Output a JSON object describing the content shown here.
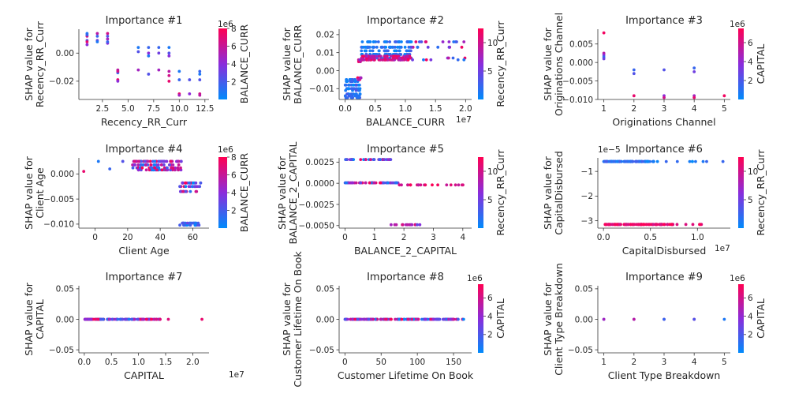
{
  "chart_data": [
    {
      "type": "scatter",
      "title": "Importance #1",
      "xlabel": "Recency_RR_Curr",
      "ylabel": "SHAP value for\nRecency_RR_Curr",
      "xlim": [
        0.2,
        12.9
      ],
      "ylim": [
        -0.033,
        0.017
      ],
      "xticks": [
        2.5,
        5.0,
        7.5,
        10.0,
        12.5
      ],
      "xtick_labels": [
        "2.5",
        "5.0",
        "7.5",
        "10.0",
        "12.5"
      ],
      "yticks": [
        0.0,
        -0.02
      ],
      "ytick_labels": [
        "0.00",
        "−0.02"
      ],
      "colorbar": {
        "label": "BALANCE_CURR",
        "range": [
          0,
          8
        ],
        "ticks": [
          2,
          4,
          6,
          8
        ],
        "tick_labels": [
          "2",
          "4",
          "6",
          "8"
        ],
        "exponent": "1e6"
      },
      "points": [
        [
          1,
          0.014,
          0.1
        ],
        [
          1,
          0.012,
          0.8
        ],
        [
          1,
          0.009,
          0.3
        ],
        [
          1,
          0.008,
          0.9
        ],
        [
          1,
          0.006,
          0.5
        ],
        [
          1,
          0.013,
          0.2
        ],
        [
          2,
          0.014,
          0.7
        ],
        [
          2,
          0.012,
          0.2
        ],
        [
          2,
          0.009,
          0.4
        ],
        [
          2,
          0.008,
          0.1
        ],
        [
          3,
          0.014,
          0.8
        ],
        [
          3,
          0.012,
          0.3
        ],
        [
          3,
          0.01,
          0.6
        ],
        [
          3,
          0.007,
          0.5
        ],
        [
          3,
          0.008,
          0.2
        ],
        [
          4,
          -0.012,
          0.7
        ],
        [
          4,
          -0.014,
          0.2
        ],
        [
          4,
          -0.019,
          0.9
        ],
        [
          4,
          -0.02,
          0.5
        ],
        [
          4,
          -0.013,
          0.8
        ],
        [
          6,
          0.004,
          0.1
        ],
        [
          6,
          0.001,
          0.3
        ],
        [
          6,
          -0.012,
          0.6
        ],
        [
          7,
          0.004,
          0.2
        ],
        [
          7,
          0.0,
          0.5
        ],
        [
          7,
          -0.002,
          0.1
        ],
        [
          7,
          -0.015,
          0.3
        ],
        [
          8,
          0.004,
          0.2
        ],
        [
          8,
          0.0,
          0.4
        ],
        [
          8,
          -0.012,
          0.6
        ],
        [
          9,
          0.004,
          0.1
        ],
        [
          9,
          0.0,
          0.3
        ],
        [
          9,
          -0.002,
          0.5
        ],
        [
          9,
          -0.013,
          0.7
        ],
        [
          9,
          -0.016,
          0.8
        ],
        [
          9,
          -0.02,
          0.9
        ],
        [
          10,
          -0.013,
          0.1
        ],
        [
          10,
          -0.019,
          0.2
        ],
        [
          10,
          -0.029,
          0.9
        ],
        [
          10,
          -0.03,
          0.6
        ],
        [
          11,
          -0.019,
          0.3
        ],
        [
          11,
          -0.029,
          0.5
        ],
        [
          12,
          -0.013,
          0.2
        ],
        [
          12,
          -0.015,
          0.1
        ],
        [
          12,
          -0.019,
          0.3
        ],
        [
          12,
          -0.029,
          0.8
        ],
        [
          12,
          -0.03,
          0.7
        ]
      ]
    },
    {
      "type": "scatter",
      "title": "Importance #2",
      "xlabel": "BALANCE_CURR",
      "ylabel": "SHAP value for\nBALANCE_CURR",
      "xlim": [
        -0.1,
        2.1
      ],
      "ylim": [
        -0.016,
        0.023
      ],
      "x_exponent": "1e7",
      "xticks": [
        0.0,
        0.5,
        1.0,
        1.5,
        2.0
      ],
      "xtick_labels": [
        "0.0",
        "0.5",
        "1.0",
        "1.5",
        "2.0"
      ],
      "yticks": [
        0.02,
        0.01,
        0.0,
        -0.01
      ],
      "ytick_labels": [
        "0.02",
        "0.01",
        "0.00",
        "−0.01"
      ],
      "colorbar": {
        "label": "Recency_RR_Curr",
        "range": [
          0,
          12.5
        ],
        "ticks": [
          5,
          10
        ],
        "tick_labels": [
          "5",
          "10"
        ]
      },
      "clusters": [
        {
          "x": [
            0.0,
            0.25
          ],
          "y": [
            -0.015,
            -0.004
          ],
          "rows": [
            -0.005,
            -0.006,
            -0.008,
            -0.01,
            -0.011,
            -0.013,
            -0.014,
            -0.015
          ],
          "n": 90,
          "c": [
            0.0,
            0.3
          ]
        },
        {
          "x": [
            0.2,
            0.27
          ],
          "y": [
            -0.005,
            0.006
          ],
          "rows": [
            -0.005,
            -0.004,
            0.006,
            0.005
          ],
          "n": 14,
          "c": [
            0.5,
            1.0
          ]
        },
        {
          "x": [
            0.27,
            1.1
          ],
          "y": [
            0.006,
            0.016
          ],
          "rows": [
            0.016,
            0.013,
            0.011,
            0.009,
            0.007
          ],
          "n": 150,
          "c": [
            0.0,
            0.25
          ]
        },
        {
          "x": [
            0.27,
            1.1
          ],
          "y": [
            0.006,
            0.009
          ],
          "rows": [
            0.008,
            0.007,
            0.006
          ],
          "n": 120,
          "c": [
            0.6,
            1.0
          ]
        },
        {
          "x": [
            1.1,
            2.0
          ],
          "y": [
            0.006,
            0.016
          ],
          "rows": [
            0.016,
            0.013,
            0.007,
            0.006
          ],
          "n": 30,
          "c": [
            0.1,
            1.0
          ]
        }
      ]
    },
    {
      "type": "scatter",
      "title": "Importance #3",
      "xlabel": "Originations Channel",
      "ylabel": "SHAP value for\nOriginations Channel",
      "xlim": [
        0.8,
        5.2
      ],
      "ylim": [
        -0.01,
        0.009
      ],
      "xticks": [
        1,
        2,
        3,
        4,
        5
      ],
      "xtick_labels": [
        "1",
        "2",
        "3",
        "4",
        "5"
      ],
      "yticks": [
        0.005,
        0.0,
        -0.005,
        -0.01
      ],
      "ytick_labels": [
        "0.005",
        "0.000",
        "−0.005",
        "−0.010"
      ],
      "colorbar": {
        "label": "CAPITAL",
        "range": [
          0,
          7.5
        ],
        "ticks": [
          2,
          4,
          6
        ],
        "tick_labels": [
          "2",
          "4",
          "6"
        ],
        "exponent": "1e6"
      },
      "points": [
        [
          1,
          0.008,
          0.95
        ],
        [
          1,
          0.0025,
          0.7
        ],
        [
          1,
          0.002,
          0.5
        ],
        [
          1,
          0.0015,
          0.2
        ],
        [
          1,
          0.001,
          0.4
        ],
        [
          2,
          -0.002,
          0.2
        ],
        [
          2,
          -0.003,
          0.3
        ],
        [
          2,
          -0.009,
          0.9
        ],
        [
          3,
          -0.002,
          0.3
        ],
        [
          3,
          -0.009,
          0.5
        ],
        [
          3,
          -0.0095,
          0.8
        ],
        [
          4,
          -0.0015,
          0.2
        ],
        [
          4,
          -0.0025,
          0.4
        ],
        [
          4,
          -0.009,
          0.6
        ],
        [
          4,
          -0.0095,
          0.9
        ],
        [
          5,
          -0.009,
          0.95
        ]
      ]
    },
    {
      "type": "scatter",
      "title": "Importance #4",
      "xlabel": "Client Age",
      "ylabel": "SHAP value for\nClient Age",
      "xlim": [
        -10,
        70
      ],
      "ylim": [
        -0.0108,
        0.0032
      ],
      "xticks": [
        0,
        20,
        40,
        60
      ],
      "xtick_labels": [
        "0",
        "20",
        "40",
        "60"
      ],
      "yticks": [
        0.0,
        -0.005,
        -0.01
      ],
      "ytick_labels": [
        "0.000",
        "−0.005",
        "−0.010"
      ],
      "colorbar": {
        "label": "BALANCE_CURR",
        "range": [
          0,
          8
        ],
        "ticks": [
          2,
          4,
          6,
          8
        ],
        "tick_labels": [
          "2",
          "4",
          "6",
          "8"
        ],
        "exponent": "1e6"
      },
      "points": [
        [
          -7,
          0.0005,
          0.9
        ],
        [
          2,
          0.0025,
          0.1
        ],
        [
          9,
          0.001,
          0.2
        ],
        [
          17,
          0.0025,
          0.3
        ]
      ],
      "clusters": [
        {
          "x": [
            23,
            53
          ],
          "y": [
            0.0008,
            0.0027
          ],
          "rows": [
            0.0025,
            0.0018,
            0.0012,
            0.0008
          ],
          "n": 140,
          "c": [
            0.0,
            1.0
          ]
        },
        {
          "x": [
            52,
            65
          ],
          "y": [
            -0.004,
            -0.0015
          ],
          "rows": [
            -0.0018,
            -0.0025,
            -0.0035
          ],
          "n": 50,
          "c": [
            0.0,
            1.0
          ]
        },
        {
          "x": [
            52,
            64
          ],
          "y": [
            -0.0103,
            -0.0098
          ],
          "rows": [
            -0.0098,
            -0.0102
          ],
          "n": 30,
          "c": [
            0.0,
            0.4
          ]
        }
      ]
    },
    {
      "type": "scatter",
      "title": "Importance #5",
      "xlabel": "BALANCE_2_CAPITAL",
      "ylabel": "SHAP value for\nBALANCE_2_CAPITAL",
      "xlim": [
        -0.2,
        4.3
      ],
      "ylim": [
        -0.0053,
        0.003
      ],
      "xticks": [
        0,
        1,
        2,
        3,
        4
      ],
      "xtick_labels": [
        "0",
        "1",
        "2",
        "3",
        "4"
      ],
      "yticks": [
        0.0025,
        0.0,
        -0.0025,
        -0.005
      ],
      "ytick_labels": [
        "0.0025",
        "0.0000",
        "−0.0025",
        "−0.0050"
      ],
      "colorbar": {
        "label": "Recency_RR_Curr",
        "range": [
          0,
          12.5
        ],
        "ticks": [
          5,
          10
        ],
        "tick_labels": [
          "5",
          "10"
        ]
      },
      "clusters": [
        {
          "x": [
            0.0,
            1.6
          ],
          "y": [
            0.0028,
            0.0029
          ],
          "rows": [
            0.0028
          ],
          "n": 40,
          "c": [
            0.0,
            1.0
          ]
        },
        {
          "x": [
            0.0,
            1.8
          ],
          "y": [
            0.0,
            0.0001
          ],
          "rows": [
            5e-05
          ],
          "n": 60,
          "c": [
            0.0,
            1.0
          ]
        },
        {
          "x": [
            1.8,
            4.1
          ],
          "y": [
            -0.0003,
            -0.0001
          ],
          "rows": [
            -0.0002
          ],
          "n": 20,
          "c": [
            0.7,
            1.0
          ]
        },
        {
          "x": [
            1.5,
            2.6
          ],
          "y": [
            -0.005,
            -0.0048
          ],
          "rows": [
            -0.0049
          ],
          "n": 14,
          "c": [
            0.3,
            0.9
          ]
        }
      ]
    },
    {
      "type": "scatter",
      "title": "Importance #6",
      "xlabel": "CapitalDisbursed",
      "ylabel": "SHAP value for\nCapitalDisbursed",
      "xlim": [
        -0.06,
        1.35
      ],
      "ylim": [
        -3.3,
        -0.45
      ],
      "x_exponent": "1e7",
      "y_exponent": "1e−5",
      "xticks": [
        0.0,
        0.5,
        1.0
      ],
      "xtick_labels": [
        "0.0",
        "0.5",
        "1.0"
      ],
      "yticks": [
        -1,
        -2,
        -3
      ],
      "ytick_labels": [
        "−1",
        "−2",
        "−3"
      ],
      "colorbar": {
        "label": "Recency_RR_Curr",
        "range": [
          0,
          12.5
        ],
        "ticks": [
          5,
          10
        ],
        "tick_labels": [
          "5",
          "10"
        ]
      },
      "clusters": [
        {
          "x": [
            0.0,
            0.55
          ],
          "y": [
            -0.62,
            -0.58
          ],
          "rows": [
            -0.6
          ],
          "n": 120,
          "c": [
            0.0,
            0.25
          ]
        },
        {
          "x": [
            0.55,
            1.3
          ],
          "y": [
            -0.62,
            -0.58
          ],
          "rows": [
            -0.6
          ],
          "n": 10,
          "c": [
            0.0,
            0.2
          ]
        },
        {
          "x": [
            0.0,
            0.75
          ],
          "y": [
            -3.18,
            -3.12
          ],
          "rows": [
            -3.15
          ],
          "n": 110,
          "c": [
            0.8,
            1.0
          ]
        },
        {
          "x": [
            0.75,
            1.1
          ],
          "y": [
            -3.18,
            -3.12
          ],
          "rows": [
            -3.15
          ],
          "n": 6,
          "c": [
            0.8,
            1.0
          ]
        }
      ]
    },
    {
      "type": "scatter",
      "title": "Importance #7",
      "xlabel": "CAPITAL",
      "ylabel": "SHAP value for\nCAPITAL",
      "xlim": [
        -0.1,
        2.3
      ],
      "ylim": [
        -0.055,
        0.055
      ],
      "x_exponent": "1e7",
      "xticks": [
        0.0,
        0.5,
        1.0,
        1.5,
        2.0
      ],
      "xtick_labels": [
        "0.0",
        "0.5",
        "1.0",
        "1.5",
        "2.0"
      ],
      "yticks": [
        0.05,
        0.0,
        -0.05
      ],
      "ytick_labels": [
        "0.05",
        "0.00",
        "−0.05"
      ],
      "points": [
        [
          1.55,
          0.0,
          0.85
        ],
        [
          2.17,
          0.0,
          0.9
        ]
      ],
      "clusters": [
        {
          "x": [
            0.0,
            1.4
          ],
          "y": [
            0.0,
            0.0
          ],
          "rows": [
            0.0
          ],
          "n": 160,
          "c": [
            0.0,
            1.0
          ]
        }
      ]
    },
    {
      "type": "scatter",
      "title": "Importance #8",
      "xlabel": "Customer Lifetime On Book",
      "ylabel": "SHAP value for\nCustomer Lifetime On Book",
      "xlim": [
        -8,
        175
      ],
      "ylim": [
        -0.055,
        0.055
      ],
      "xticks": [
        0,
        50,
        100,
        150
      ],
      "xtick_labels": [
        "0",
        "50",
        "100",
        "150"
      ],
      "yticks": [
        0.05,
        0.0,
        -0.05
      ],
      "ytick_labels": [
        "0.05",
        "0.00",
        "−0.05"
      ],
      "colorbar": {
        "label": "CAPITAL",
        "range": [
          0,
          7.5
        ],
        "ticks": [
          2,
          4,
          6
        ],
        "tick_labels": [
          "2",
          "4",
          "6"
        ],
        "exponent": "1e6"
      },
      "clusters": [
        {
          "x": [
            0,
            165
          ],
          "y": [
            0.0,
            0.0
          ],
          "rows": [
            0.0
          ],
          "n": 200,
          "c": [
            0.0,
            1.0
          ]
        }
      ]
    },
    {
      "type": "scatter",
      "title": "Importance #9",
      "xlabel": "Client Type Breakdown",
      "ylabel": "SHAP value for\nClient Type Breakdown",
      "xlim": [
        0.8,
        5.2
      ],
      "ylim": [
        -0.055,
        0.055
      ],
      "xticks": [
        1,
        2,
        3,
        4,
        5
      ],
      "xtick_labels": [
        "1",
        "2",
        "3",
        "4",
        "5"
      ],
      "yticks": [
        0.05,
        0.0,
        -0.05
      ],
      "ytick_labels": [
        "0.05",
        "0.00",
        "−0.05"
      ],
      "colorbar": {
        "label": "CAPITAL",
        "range": [
          0,
          7.5
        ],
        "ticks": [
          2,
          4,
          6
        ],
        "tick_labels": [
          "2",
          "4",
          "6"
        ],
        "exponent": "1e6"
      },
      "points": [
        [
          1,
          0.0,
          0.3
        ],
        [
          1,
          0.0,
          0.6
        ],
        [
          2,
          0.0,
          0.4
        ],
        [
          2,
          0.0,
          0.7
        ],
        [
          3,
          0.0,
          0.5
        ],
        [
          3,
          0.0,
          0.2
        ],
        [
          4,
          0.0,
          0.6
        ],
        [
          4,
          0.0,
          0.3
        ],
        [
          5,
          0.0,
          0.1
        ]
      ]
    }
  ]
}
